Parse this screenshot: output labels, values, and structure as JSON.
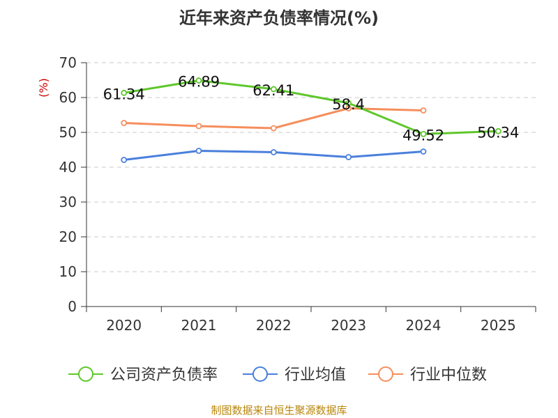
{
  "chart_data": {
    "type": "line",
    "title": "近年来资产负债率情况(%)",
    "ylabel": "(%)",
    "xlabel": "",
    "categories": [
      "2020",
      "2021",
      "2022",
      "2023",
      "2024",
      "2025"
    ],
    "ylim": [
      0,
      70
    ],
    "yticks": [
      0,
      10,
      20,
      30,
      40,
      50,
      60,
      70
    ],
    "grid": true,
    "legend_position": "bottom",
    "series": [
      {
        "name": "公司资产负债率",
        "color": "#5ec72b",
        "values": [
          61.34,
          64.89,
          62.41,
          58.4,
          49.52,
          50.34
        ],
        "labels": [
          "61.34",
          "64.89",
          "62.41",
          "58.4",
          "49.52",
          "50.34"
        ]
      },
      {
        "name": "行业均值",
        "color": "#4a7fdc",
        "values": [
          42.1,
          44.7,
          44.3,
          42.9,
          44.5,
          null
        ]
      },
      {
        "name": "行业中位数",
        "color": "#f58e5c",
        "values": [
          52.7,
          51.8,
          51.2,
          56.9,
          56.3,
          null
        ]
      }
    ]
  },
  "footer": {
    "source": "制图数据来自恒生聚源数据库"
  }
}
